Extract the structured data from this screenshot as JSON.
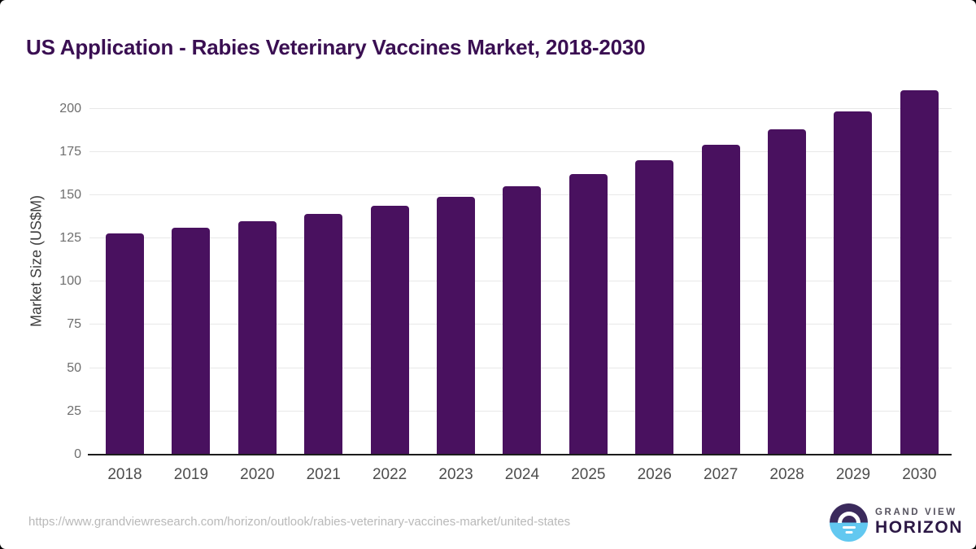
{
  "title": "US Application - Rabies Veterinary Vaccines Market, 2018-2030",
  "chart_data": {
    "type": "bar",
    "title": "US Application - Rabies Veterinary Vaccines Market, 2018-2030",
    "categories": [
      "2018",
      "2019",
      "2020",
      "2021",
      "2022",
      "2023",
      "2024",
      "2025",
      "2026",
      "2027",
      "2028",
      "2029",
      "2030"
    ],
    "values": [
      128,
      131,
      135,
      139,
      144,
      149,
      155,
      162,
      170,
      179,
      188,
      198.5,
      210.5
    ],
    "xlabel": "",
    "ylabel": "Market Size (US$M)",
    "ylim": [
      0,
      213.4
    ],
    "yticks": [
      0,
      25,
      50,
      75,
      100,
      125,
      150,
      175,
      200
    ],
    "grid": "horizontal",
    "legend": "none",
    "bar_color": "#49115f"
  },
  "footer": {
    "source_url": "https://www.grandviewresearch.com/horizon/outlook/rabies-veterinary-vaccines-market/united-states",
    "logo": {
      "top_text": "GRAND VIEW",
      "bottom_text": "HORIZON"
    }
  },
  "colors": {
    "bar": "#49115f",
    "title": "#3a0f52",
    "gridline": "#e8e8e8",
    "axis_line": "#1c1c1c",
    "y_tick_text": "#6e6e6e",
    "x_tick_text": "#4d4d4d",
    "url_text": "#b9b9b9",
    "logo_circle_top": "#3b2a5c",
    "logo_circle_bottom": "#62c8f0",
    "logo_horizon_text": "#2c1845"
  }
}
